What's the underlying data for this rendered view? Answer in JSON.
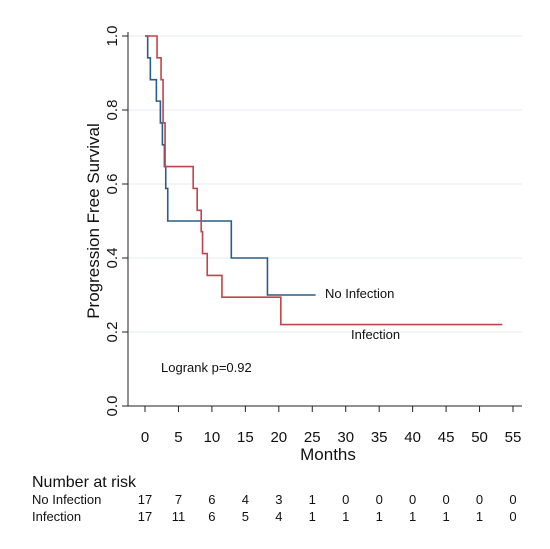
{
  "chart_data": {
    "type": "line",
    "subtype": "kaplan-meier step",
    "xlabel": "Months",
    "ylabel": "Progression Free Survival",
    "xlim": [
      0,
      55
    ],
    "ylim": [
      0,
      1.0
    ],
    "x_ticks": [
      0,
      5,
      10,
      15,
      20,
      25,
      30,
      35,
      40,
      45,
      50,
      55
    ],
    "y_ticks": [
      "0.0",
      "0.2",
      "0.4",
      "0.6",
      "0.8",
      "1.0"
    ],
    "grid": "horizontal",
    "series": [
      {
        "name": "No Infection",
        "color": "#2a5d8a",
        "points": [
          [
            0,
            1.0
          ],
          [
            0.4,
            0.941
          ],
          [
            0.8,
            0.882
          ],
          [
            1.7,
            0.824
          ],
          [
            2.3,
            0.765
          ],
          [
            2.6,
            0.706
          ],
          [
            2.9,
            0.647
          ],
          [
            3.1,
            0.588
          ],
          [
            3.4,
            0.5
          ],
          [
            12.9,
            0.4
          ],
          [
            18.3,
            0.3
          ],
          [
            25.5,
            0.3
          ]
        ]
      },
      {
        "name": "Infection",
        "color": "#c0444a",
        "points": [
          [
            0,
            1.0
          ],
          [
            1.8,
            0.941
          ],
          [
            2.4,
            0.882
          ],
          [
            2.7,
            0.765
          ],
          [
            3.0,
            0.647
          ],
          [
            7.2,
            0.588
          ],
          [
            7.8,
            0.529
          ],
          [
            8.4,
            0.471
          ],
          [
            8.6,
            0.412
          ],
          [
            9.3,
            0.353
          ],
          [
            11.5,
            0.294
          ],
          [
            20.3,
            0.22
          ],
          [
            53.4,
            0.22
          ]
        ]
      }
    ],
    "annotations": {
      "logrank": "Logrank p=0.92",
      "label_no_infection": "No Infection",
      "label_infection": "Infection"
    },
    "risk_table": {
      "title": "Number at risk",
      "rows": [
        {
          "name": "No Infection",
          "counts": [
            "17",
            "7",
            "6",
            "4",
            "3",
            "1",
            "0",
            "0",
            "0",
            "0",
            "0",
            "0"
          ]
        },
        {
          "name": "Infection",
          "counts": [
            "17",
            "11",
            "6",
            "5",
            "4",
            "1",
            "1",
            "1",
            "1",
            "1",
            "1",
            "0"
          ]
        }
      ]
    }
  }
}
